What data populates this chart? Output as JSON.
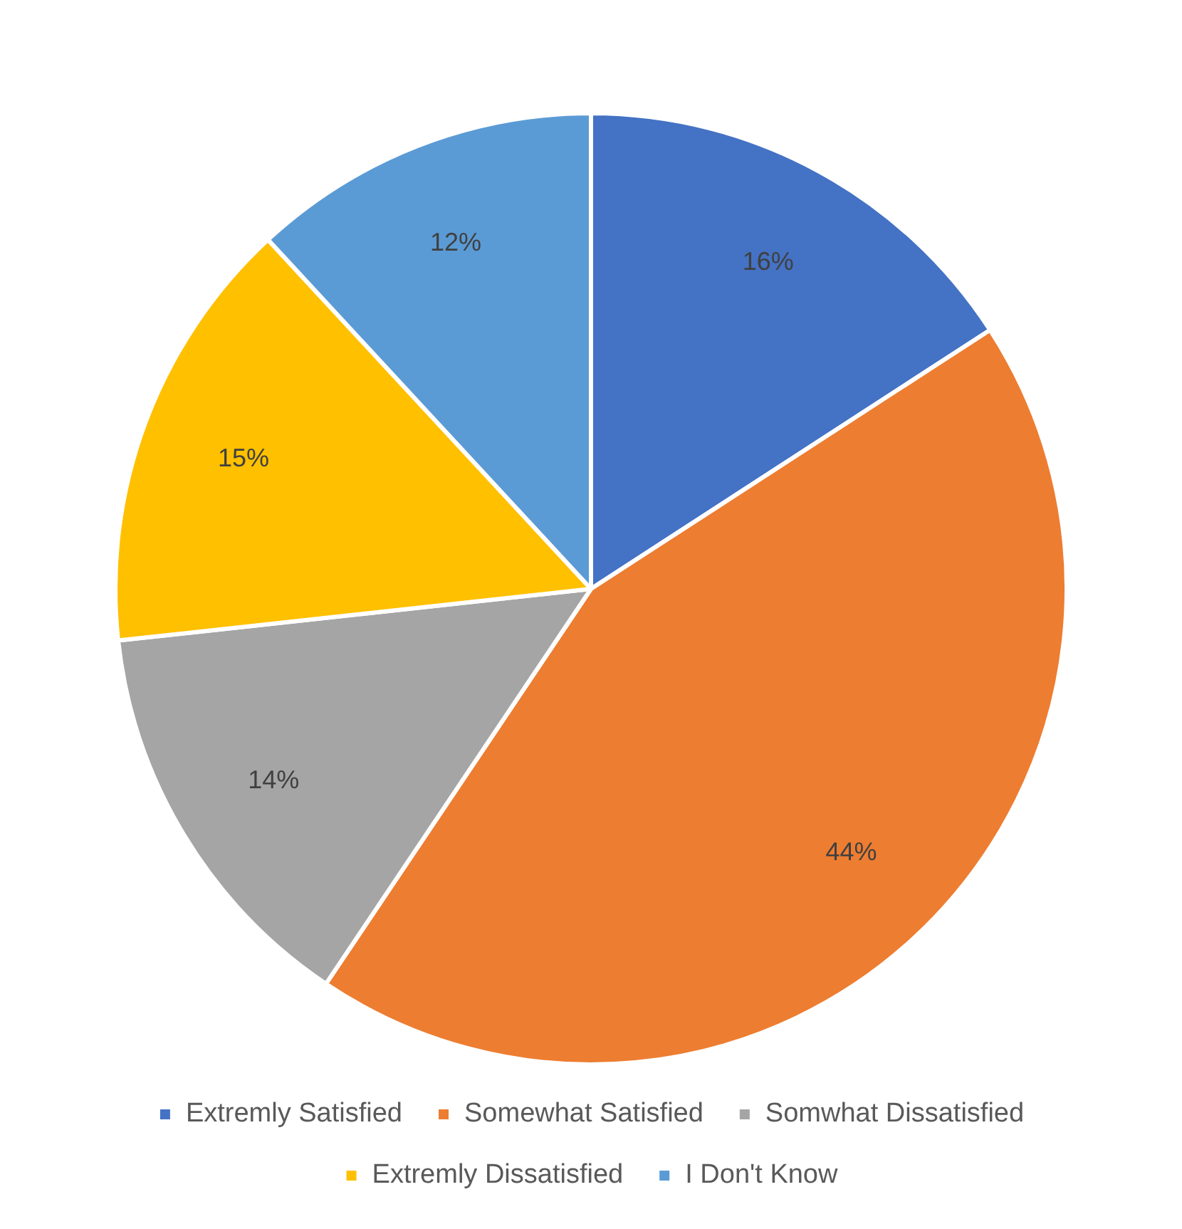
{
  "chart_data": {
    "type": "pie",
    "categories": [
      "Extremly Satisfied",
      "Somewhat Satisfied",
      "Somwhat Dissatisfied",
      "Extremly Dissatisfied",
      "I Don't Know"
    ],
    "values": [
      16,
      44,
      14,
      15,
      12
    ],
    "colors": [
      "#4472c4",
      "#ed7d31",
      "#a5a5a5",
      "#ffc000",
      "#5b9bd5"
    ],
    "value_labels": [
      "16%",
      "44%",
      "14%",
      "15%",
      "12%"
    ],
    "legend": "bottom"
  }
}
